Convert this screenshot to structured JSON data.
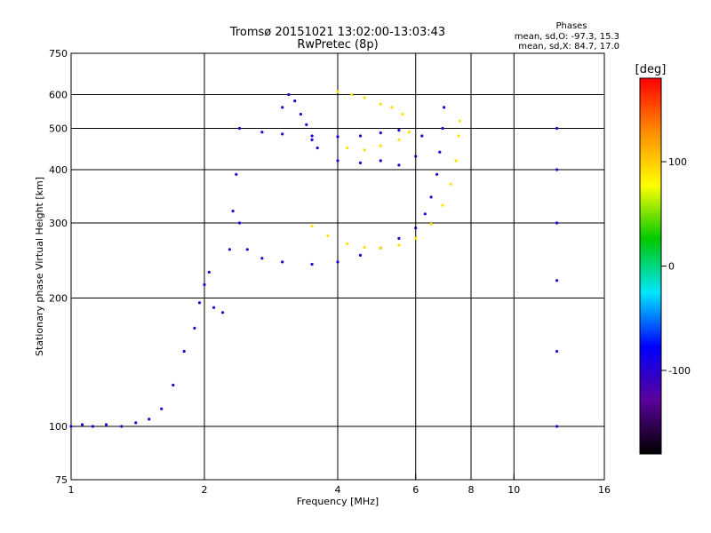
{
  "chart_data": {
    "type": "scatter",
    "title_line1": "Tromsø 20151021 13:02:00-13:03:43",
    "title_line2": "RwPretec (8p)",
    "stats": {
      "header": "Phases",
      "line_o": "mean, sd,O: -97.3, 15.3",
      "line_x": "mean, sd,X:  84.7, 17.0"
    },
    "xlabel": "Frequency [MHz]",
    "ylabel": "Stationary phase Virtual Height [km]",
    "x_scale": "log",
    "y_scale": "log",
    "xlim": [
      1,
      16
    ],
    "ylim": [
      75,
      750
    ],
    "x_ticks": [
      1,
      2,
      4,
      6,
      8,
      10,
      16
    ],
    "y_ticks": [
      75,
      100,
      200,
      300,
      400,
      500,
      600,
      750
    ],
    "x_grid": [
      2,
      4,
      6,
      8,
      10
    ],
    "y_grid": [
      100,
      200,
      300,
      400,
      500,
      600
    ],
    "grid": true,
    "colorbar": {
      "label": "[deg]",
      "range": [
        -180,
        180
      ],
      "ticks": [
        100,
        0,
        -100
      ],
      "colormap": "rainbow",
      "colors": [
        "#000000",
        "#5a009a",
        "#0000ff",
        "#00e5ff",
        "#00c800",
        "#ffff00",
        "#ff8c00",
        "#ff0000"
      ]
    },
    "series": [
      {
        "mode": "O",
        "phase": -100,
        "points": [
          [
            1.0,
            100
          ],
          [
            1.06,
            101
          ],
          [
            1.12,
            100
          ],
          [
            1.2,
            101
          ],
          [
            1.3,
            100
          ],
          [
            1.4,
            102
          ],
          [
            1.5,
            104
          ],
          [
            1.6,
            110
          ],
          [
            1.7,
            125
          ],
          [
            1.8,
            150
          ],
          [
            1.9,
            170
          ],
          [
            1.95,
            195
          ],
          [
            2.0,
            215
          ],
          [
            2.05,
            230
          ],
          [
            2.1,
            190
          ],
          [
            2.2,
            185
          ],
          [
            2.28,
            260
          ],
          [
            2.32,
            320
          ],
          [
            2.36,
            390
          ],
          [
            2.4,
            300
          ],
          [
            2.5,
            260
          ],
          [
            2.7,
            248
          ],
          [
            3.0,
            243
          ],
          [
            3.5,
            240
          ],
          [
            4.0,
            243
          ],
          [
            4.5,
            252
          ],
          [
            5.0,
            262
          ],
          [
            5.5,
            276
          ],
          [
            6.0,
            292
          ],
          [
            6.3,
            315
          ],
          [
            6.5,
            345
          ],
          [
            6.7,
            390
          ],
          [
            6.8,
            440
          ],
          [
            6.9,
            500
          ],
          [
            6.95,
            560
          ],
          [
            2.4,
            500
          ],
          [
            2.7,
            490
          ],
          [
            3.0,
            485
          ],
          [
            3.5,
            480
          ],
          [
            4.0,
            478
          ],
          [
            4.5,
            480
          ],
          [
            5.0,
            488
          ],
          [
            5.5,
            495
          ],
          [
            3.0,
            560
          ],
          [
            3.1,
            600
          ],
          [
            3.2,
            580
          ],
          [
            3.3,
            540
          ],
          [
            3.4,
            510
          ],
          [
            3.5,
            470
          ],
          [
            3.6,
            450
          ],
          [
            4.0,
            420
          ],
          [
            4.5,
            415
          ],
          [
            5.0,
            420
          ],
          [
            5.5,
            410
          ],
          [
            6.0,
            430
          ],
          [
            6.2,
            480
          ],
          [
            12.5,
            500
          ],
          [
            12.5,
            400
          ],
          [
            12.5,
            300
          ],
          [
            12.5,
            220
          ],
          [
            12.5,
            150
          ],
          [
            12.5,
            100
          ]
        ]
      },
      {
        "mode": "X",
        "phase": 90,
        "points": [
          [
            3.5,
            295
          ],
          [
            3.8,
            280
          ],
          [
            4.2,
            268
          ],
          [
            4.6,
            263
          ],
          [
            5.0,
            262
          ],
          [
            5.5,
            266
          ],
          [
            6.0,
            276
          ],
          [
            6.5,
            298
          ],
          [
            6.9,
            330
          ],
          [
            7.2,
            370
          ],
          [
            7.4,
            420
          ],
          [
            7.5,
            480
          ],
          [
            7.55,
            520
          ],
          [
            4.0,
            610
          ],
          [
            4.3,
            600
          ],
          [
            4.6,
            590
          ],
          [
            5.0,
            570
          ],
          [
            5.3,
            560
          ],
          [
            5.6,
            540
          ],
          [
            4.2,
            450
          ],
          [
            4.6,
            445
          ],
          [
            5.0,
            455
          ],
          [
            5.5,
            470
          ],
          [
            5.8,
            490
          ]
        ]
      }
    ]
  }
}
